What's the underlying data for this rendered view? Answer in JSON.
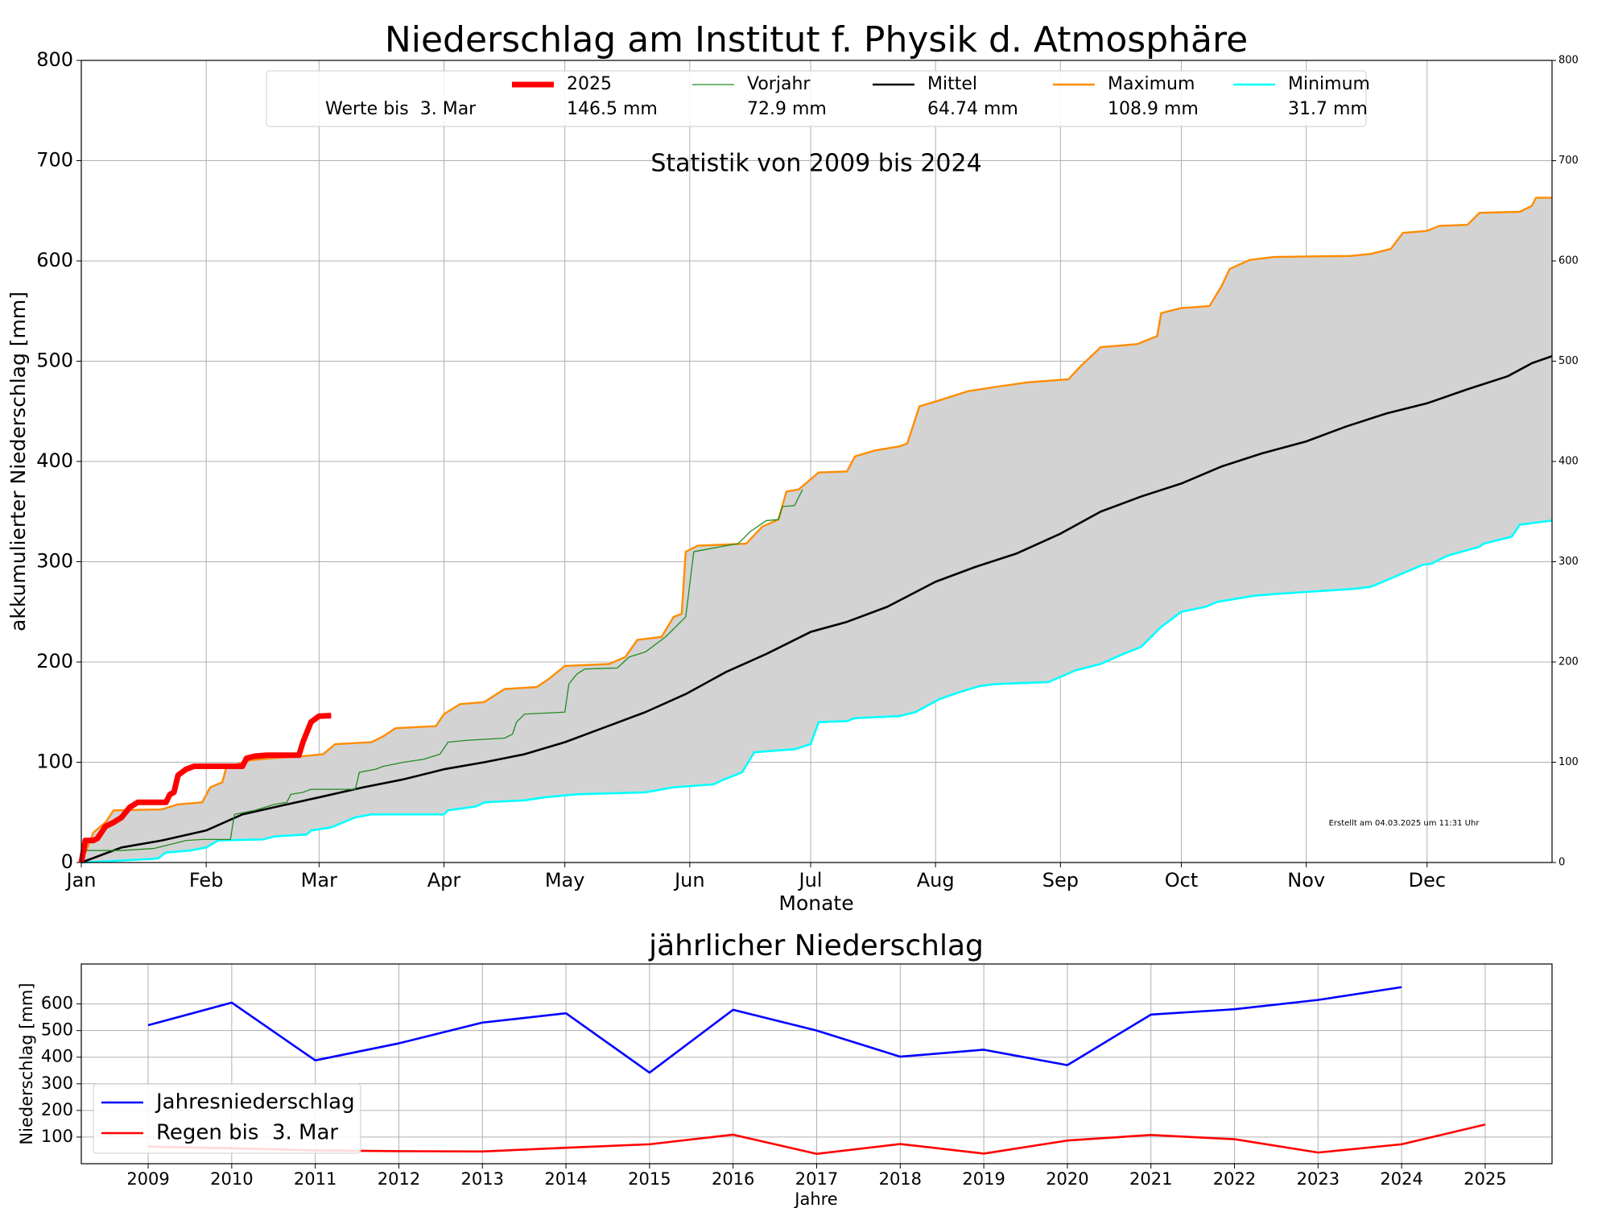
{
  "chart_data": [
    {
      "type": "line",
      "title": "Niederschlag am Institut f. Physik d. Atmosphäre",
      "subtitle": "Statistik von 2009 bis 2024",
      "annotation": "Erstellt am 04.03.2025 um 11:31 Uhr",
      "xlabel": "Monate",
      "ylabel": "akkumulierter Niederschlag [mm]",
      "legend": "upper center",
      "legend_title": "Werte bis  3. Mar",
      "grid": true,
      "xlim": [
        0,
        365
      ],
      "xticks": [
        {
          "value": 0,
          "label": "Jan"
        },
        {
          "value": 31,
          "label": "Feb"
        },
        {
          "value": 59,
          "label": "Mar"
        },
        {
          "value": 90,
          "label": "Apr"
        },
        {
          "value": 120,
          "label": "May"
        },
        {
          "value": 151,
          "label": "Jun"
        },
        {
          "value": 181,
          "label": "Jul"
        },
        {
          "value": 212,
          "label": "Aug"
        },
        {
          "value": 243,
          "label": "Sep"
        },
        {
          "value": 273,
          "label": "Oct"
        },
        {
          "value": 304,
          "label": "Nov"
        },
        {
          "value": 334,
          "label": "Dec"
        }
      ],
      "ylim": [
        0,
        800
      ],
      "yticks": [
        0,
        100,
        200,
        300,
        400,
        500,
        600,
        700,
        800
      ],
      "y2lim": [
        0,
        800
      ],
      "y2ticks": [
        0,
        100,
        200,
        300,
        400,
        500,
        600,
        700,
        800
      ],
      "fill_between": [
        3,
        4
      ],
      "fill_color": "#d3d3d3",
      "series": [
        {
          "name": "2025",
          "color": "#ff0000",
          "line_width": 7,
          "legend_label": "146.5 mm",
          "x": [
            0,
            1,
            3,
            4,
            6,
            8,
            10,
            12,
            14,
            21,
            22,
            23,
            24,
            26,
            28,
            40,
            41,
            43,
            46,
            54,
            55,
            57,
            59,
            62
          ],
          "values": [
            0,
            22,
            22,
            24,
            36,
            40,
            45,
            55,
            60,
            60,
            68,
            70,
            87,
            93,
            96,
            96,
            104,
            106,
            107,
            107,
            120,
            140,
            146,
            146.5
          ]
        },
        {
          "name": "Vorjahr",
          "color": "#228b22",
          "line_width": 1.3,
          "legend_label": "72.9 mm",
          "x": [
            0,
            1,
            10,
            18,
            22,
            26,
            30,
            37,
            38,
            43,
            48,
            51,
            52,
            55,
            57,
            68,
            69,
            73,
            75,
            80,
            85,
            89,
            91,
            96,
            105,
            107,
            108,
            110,
            120,
            121,
            123,
            125,
            133,
            136,
            140,
            145,
            150,
            152,
            160,
            163,
            166,
            170,
            173,
            174,
            177,
            179
          ],
          "values": [
            0,
            12,
            12,
            14,
            18,
            22,
            23,
            23,
            48,
            52,
            58,
            60,
            68,
            70,
            73,
            73,
            90,
            93,
            96,
            100,
            103,
            108,
            120,
            122,
            124,
            128,
            140,
            148,
            150,
            178,
            188,
            193,
            194,
            205,
            210,
            225,
            245,
            310,
            316,
            318,
            330,
            341,
            342,
            355,
            356,
            372
          ]
        },
        {
          "name": "Mittel",
          "color": "#000000",
          "line_width": 2.6,
          "legend_label": "64.74 mm",
          "x": [
            0,
            10,
            20,
            31,
            40,
            50,
            59,
            70,
            80,
            90,
            100,
            110,
            120,
            130,
            140,
            150,
            160,
            170,
            181,
            190,
            200,
            212,
            222,
            232,
            243,
            253,
            263,
            273,
            283,
            293,
            304,
            314,
            324,
            334,
            344,
            354,
            360,
            365
          ],
          "values": [
            0,
            15,
            22,
            32,
            48,
            57,
            65,
            75,
            83,
            93,
            100,
            108,
            120,
            135,
            150,
            168,
            190,
            208,
            230,
            240,
            255,
            280,
            295,
            308,
            328,
            350,
            365,
            378,
            395,
            408,
            420,
            435,
            448,
            458,
            472,
            485,
            498,
            505
          ]
        },
        {
          "name": "Maximum",
          "color": "#ff8c00",
          "line_width": 2.4,
          "legend_label": "108.9 mm",
          "x": [
            0,
            3,
            6,
            8,
            20,
            24,
            30,
            32,
            35,
            36,
            42,
            47,
            55,
            60,
            63,
            72,
            75,
            78,
            88,
            90,
            94,
            100,
            105,
            113,
            116,
            120,
            131,
            135,
            138,
            144,
            147,
            149,
            150,
            153,
            165,
            169,
            173,
            175,
            178,
            183,
            190,
            192,
            197,
            203,
            205,
            208,
            213,
            220,
            228,
            235,
            245,
            248,
            253,
            262,
            267,
            268,
            273,
            280,
            283,
            285,
            290,
            296,
            315,
            320,
            325,
            328,
            334,
            337,
            344,
            347,
            357,
            360,
            361,
            365
          ],
          "values": [
            0,
            30,
            40,
            52,
            53,
            58,
            60,
            75,
            80,
            95,
            102,
            104,
            106,
            108,
            118,
            120,
            126,
            134,
            136,
            148,
            158,
            160,
            173,
            175,
            183,
            196,
            198,
            205,
            222,
            225,
            245,
            248,
            310,
            316,
            318,
            335,
            342,
            370,
            372,
            389,
            390,
            405,
            411,
            415,
            418,
            455,
            461,
            470,
            475,
            479,
            482,
            495,
            514,
            517,
            525,
            548,
            553,
            555,
            575,
            592,
            601,
            604,
            605,
            607,
            612,
            628,
            630,
            635,
            636,
            648,
            649,
            655,
            663,
            663
          ]
        },
        {
          "name": "Minimum",
          "color": "#00ffff",
          "line_width": 2.6,
          "legend_label": "31.7 mm",
          "x": [
            0,
            10,
            19,
            21,
            27,
            31,
            34,
            45,
            48,
            56,
            57,
            62,
            65,
            68,
            72,
            90,
            91,
            98,
            100,
            110,
            115,
            123,
            140,
            147,
            157,
            159,
            164,
            167,
            177,
            181,
            183,
            190,
            192,
            203,
            207,
            213,
            218,
            223,
            227,
            240,
            247,
            253,
            258,
            263,
            268,
            273,
            279,
            282,
            291,
            297,
            316,
            320,
            323,
            333,
            335,
            339,
            347,
            348,
            353,
            355,
            357,
            365
          ],
          "values": [
            0,
            2,
            4,
            10,
            12,
            15,
            22,
            23,
            26,
            28,
            32,
            35,
            40,
            45,
            48,
            48,
            52,
            56,
            60,
            62,
            65,
            68,
            70,
            75,
            78,
            82,
            90,
            110,
            113,
            118,
            140,
            141,
            144,
            146,
            150,
            163,
            170,
            176,
            178,
            180,
            192,
            198,
            207,
            215,
            235,
            250,
            255,
            260,
            266,
            268,
            273,
            275,
            280,
            297,
            298,
            306,
            315,
            318,
            323,
            325,
            337,
            341
          ]
        }
      ]
    },
    {
      "type": "line",
      "title": "jährlicher Niederschlag",
      "xlabel": "Jahre",
      "ylabel": "Niederschlag [mm]",
      "legend": "lower left",
      "grid": true,
      "xlim": [
        2008.2,
        2025.8
      ],
      "xticks": [
        2009,
        2010,
        2011,
        2012,
        2013,
        2014,
        2015,
        2016,
        2017,
        2018,
        2019,
        2020,
        2021,
        2022,
        2023,
        2024,
        2025
      ],
      "ylim": [
        0,
        750
      ],
      "yticks": [
        100,
        200,
        300,
        400,
        500,
        600
      ],
      "x": [
        2009,
        2010,
        2011,
        2012,
        2013,
        2014,
        2015,
        2016,
        2017,
        2018,
        2019,
        2020,
        2021,
        2022,
        2023,
        2024,
        2025
      ],
      "series": [
        {
          "name": "Jahresniederschlag",
          "color": "#0000ff",
          "line_width": 2.6,
          "values": [
            520,
            605,
            388,
            452,
            530,
            565,
            342,
            578,
            500,
            402,
            428,
            370,
            560,
            580,
            615,
            663,
            null
          ]
        },
        {
          "name": "Regen bis  3. Mar",
          "color": "#ff0000",
          "line_width": 2.6,
          "values": [
            64,
            58,
            50,
            47,
            46,
            60,
            73,
            109,
            37,
            74,
            38,
            87,
            108,
            92,
            42,
            73,
            147
          ]
        }
      ]
    }
  ]
}
